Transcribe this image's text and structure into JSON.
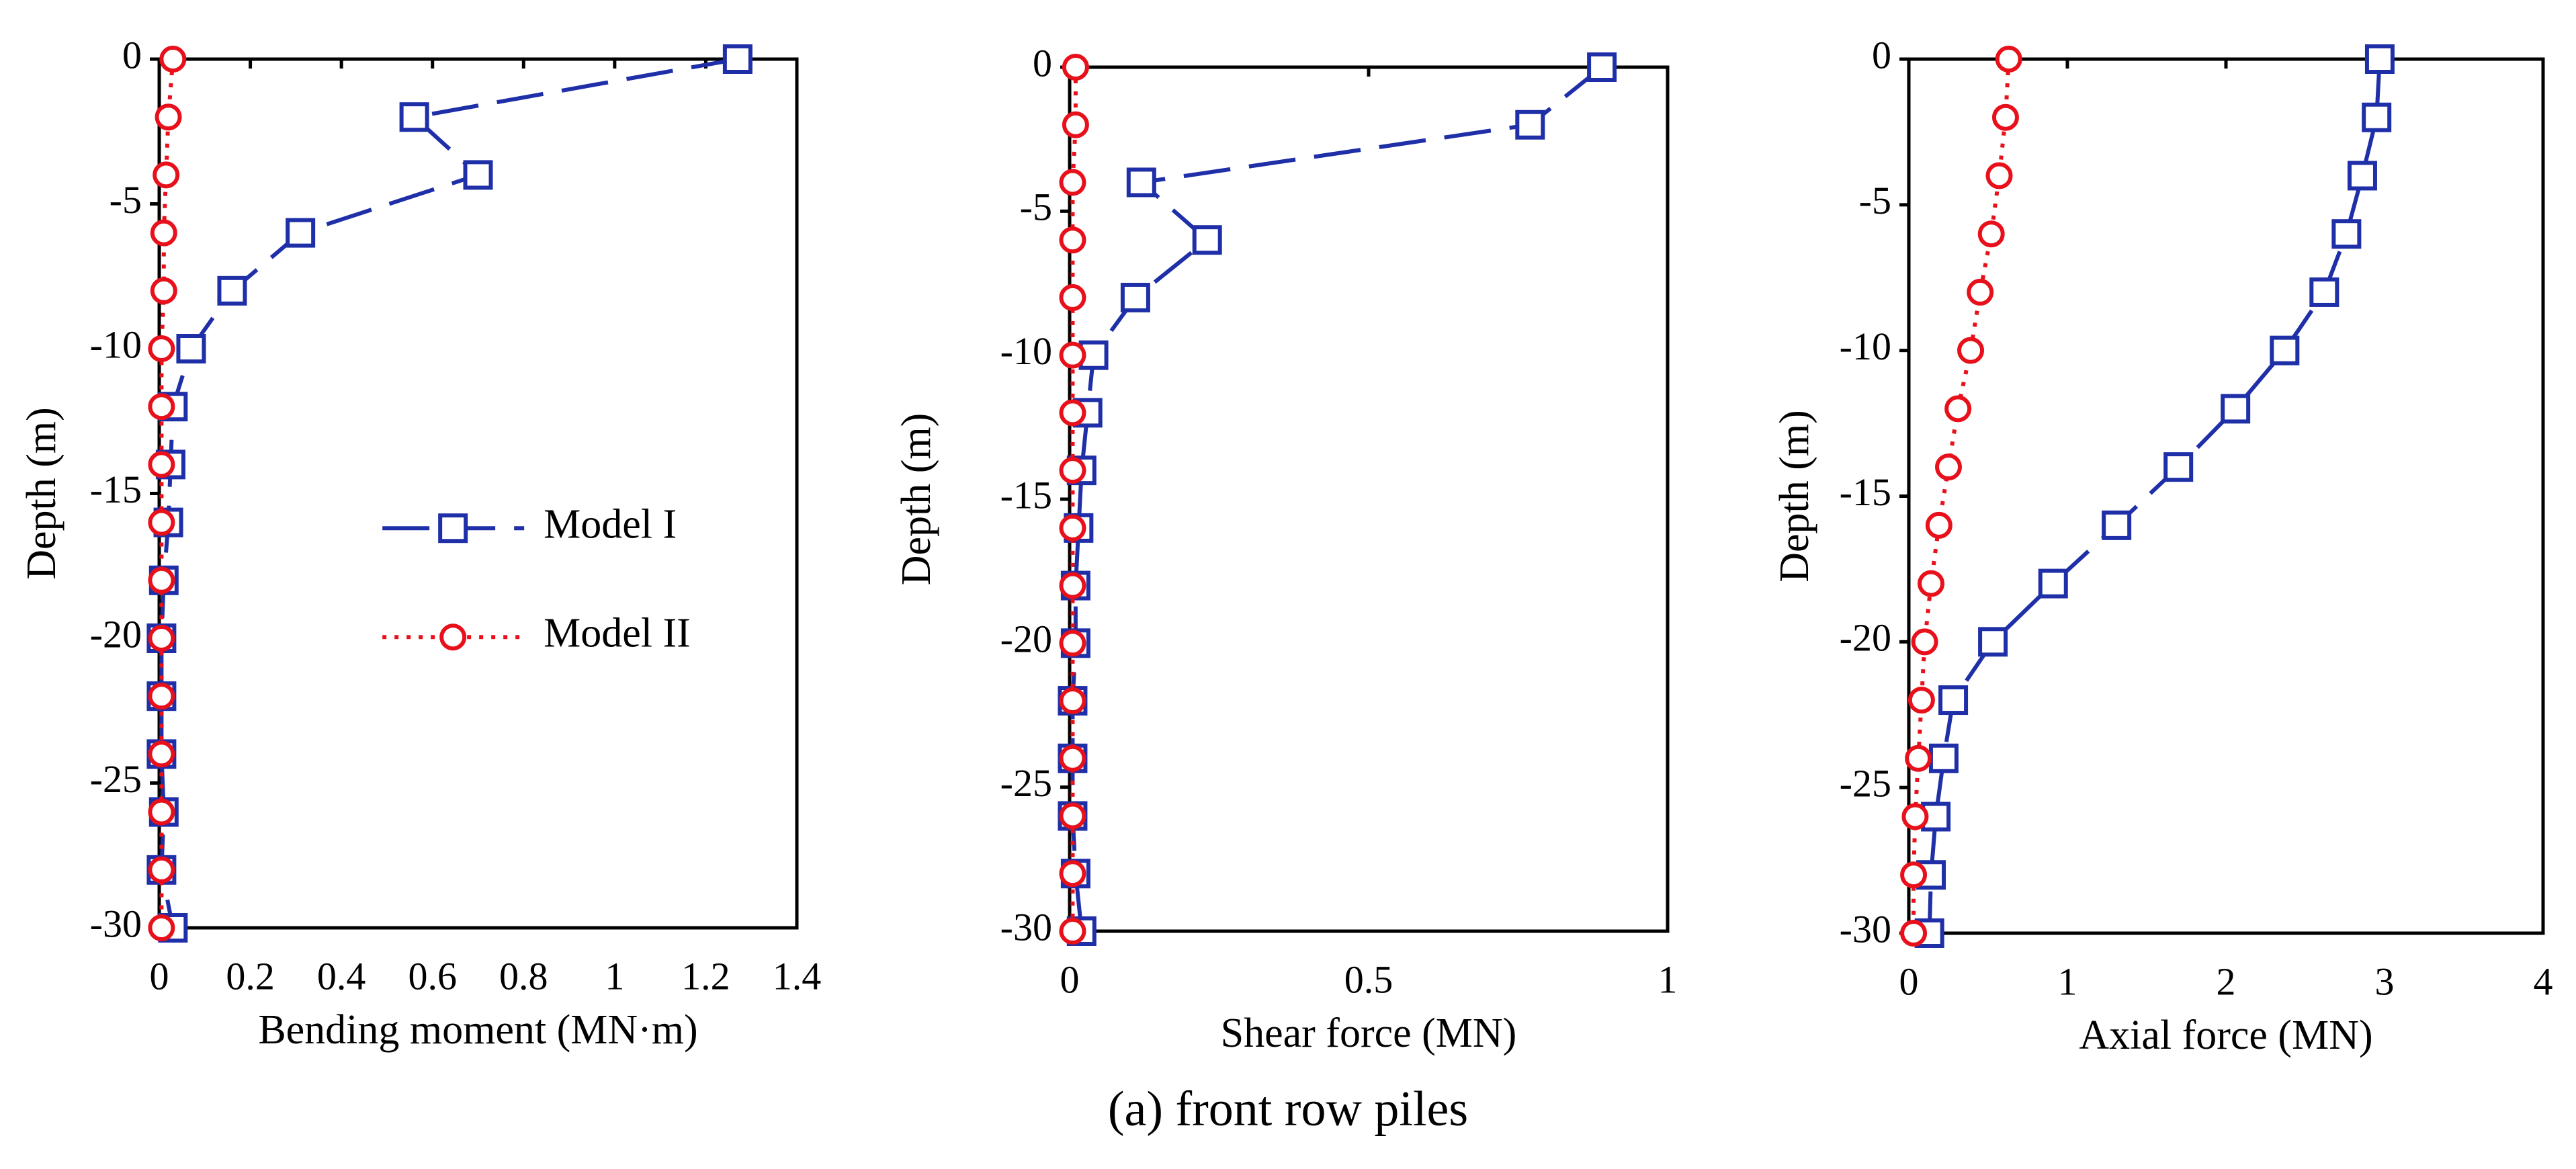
{
  "chart_data": [
    {
      "type": "line",
      "xlabel": "Bending moment (MN·m)",
      "ylabel": "Depth (m)",
      "xlim": [
        0,
        1.4
      ],
      "xticks": [
        0,
        0.2,
        0.4,
        0.6,
        0.8,
        1,
        1.2,
        1.4
      ],
      "ylim": [
        -30,
        0
      ],
      "yticks": [
        0,
        -5,
        -10,
        -15,
        -20,
        -25,
        -30
      ],
      "legend": "center right",
      "y": [
        0,
        -2,
        -4,
        -6,
        -8,
        -10,
        -12,
        -14,
        -16,
        -18,
        -20,
        -22,
        -24,
        -26,
        -28,
        -30
      ],
      "series": [
        {
          "name": "Model I",
          "color": "#1f2fa8",
          "x": [
            1.27,
            0.56,
            0.7,
            0.31,
            0.16,
            0.07,
            0.03,
            0.025,
            0.02,
            0.01,
            0.005,
            0.005,
            0.005,
            0.01,
            0.005,
            0.03
          ]
        },
        {
          "name": "Model II",
          "color": "#e8101a",
          "x": [
            0.03,
            0.02,
            0.015,
            0.01,
            0.01,
            0.005,
            0.005,
            0.005,
            0.005,
            0.005,
            0.005,
            0.005,
            0.005,
            0.005,
            0.005,
            0.005
          ]
        }
      ]
    },
    {
      "type": "line",
      "xlabel": "Shear force (MN)",
      "ylabel": "Depth (m)",
      "xlim": [
        0,
        1
      ],
      "xticks": [
        0,
        0.5,
        1
      ],
      "ylim": [
        -30,
        0
      ],
      "yticks": [
        0,
        -5,
        -10,
        -15,
        -20,
        -25,
        -30
      ],
      "y": [
        0,
        -2,
        -4,
        -6,
        -8,
        -10,
        -12,
        -14,
        -16,
        -18,
        -20,
        -22,
        -24,
        -26,
        -28,
        -30
      ],
      "series": [
        {
          "color": "#1f2fa8",
          "x": [
            0.89,
            0.77,
            0.12,
            0.23,
            0.11,
            0.04,
            0.03,
            0.02,
            0.015,
            0.01,
            0.01,
            0.005,
            0.005,
            0.005,
            0.01,
            0.02
          ]
        },
        {
          "color": "#e8101a",
          "x": [
            0.01,
            0.01,
            0.005,
            0.005,
            0.005,
            0.005,
            0.005,
            0.005,
            0.005,
            0.005,
            0.005,
            0.005,
            0.005,
            0.005,
            0.005,
            0.005
          ]
        }
      ]
    },
    {
      "type": "line",
      "xlabel": "Axial force (MN)",
      "ylabel": "Depth (m)",
      "xlim": [
        0,
        4
      ],
      "xticks": [
        0,
        1,
        2,
        3,
        4
      ],
      "ylim": [
        -30,
        0
      ],
      "yticks": [
        0,
        -5,
        -10,
        -15,
        -20,
        -25,
        -30
      ],
      "y": [
        0,
        -2,
        -4,
        -6,
        -8,
        -10,
        -12,
        -14,
        -16,
        -18,
        -20,
        -22,
        -24,
        -26,
        -28,
        -30
      ],
      "series": [
        {
          "color": "#1f2fa8",
          "x": [
            2.97,
            2.95,
            2.86,
            2.76,
            2.62,
            2.37,
            2.06,
            1.7,
            1.31,
            0.91,
            0.53,
            0.28,
            0.22,
            0.17,
            0.14,
            0.13
          ]
        },
        {
          "color": "#e8101a",
          "x": [
            0.63,
            0.61,
            0.57,
            0.52,
            0.45,
            0.39,
            0.31,
            0.25,
            0.19,
            0.14,
            0.1,
            0.08,
            0.06,
            0.04,
            0.03,
            0.03
          ]
        }
      ]
    }
  ],
  "caption": "(a) front row piles"
}
